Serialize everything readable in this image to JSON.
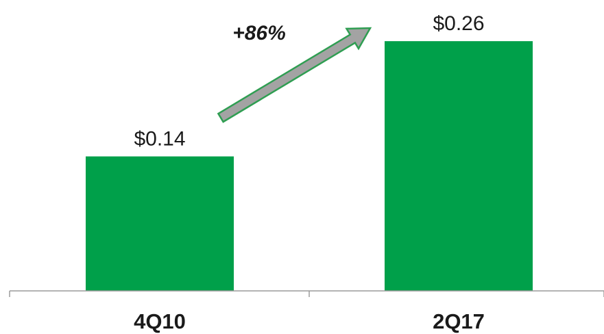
{
  "chart_data": {
    "type": "bar",
    "categories": [
      "4Q10",
      "2Q17"
    ],
    "values": [
      0.14,
      0.26
    ],
    "data_labels": [
      "$0.14",
      "$0.26"
    ],
    "annotation": {
      "text": "+86%",
      "kind": "arrow",
      "from_category": "4Q10",
      "to_category": "2Q17"
    },
    "title": "",
    "xlabel": "",
    "ylabel": "",
    "ylim": [
      0,
      0.3
    ],
    "grid": false,
    "legend": "none"
  },
  "colors": {
    "bar": "#00a04a",
    "arrow_fill": "#a3a3a3",
    "arrow_stroke": "#2f9e52",
    "axis": "#9a9a9a",
    "text": "#1a1a1a"
  }
}
